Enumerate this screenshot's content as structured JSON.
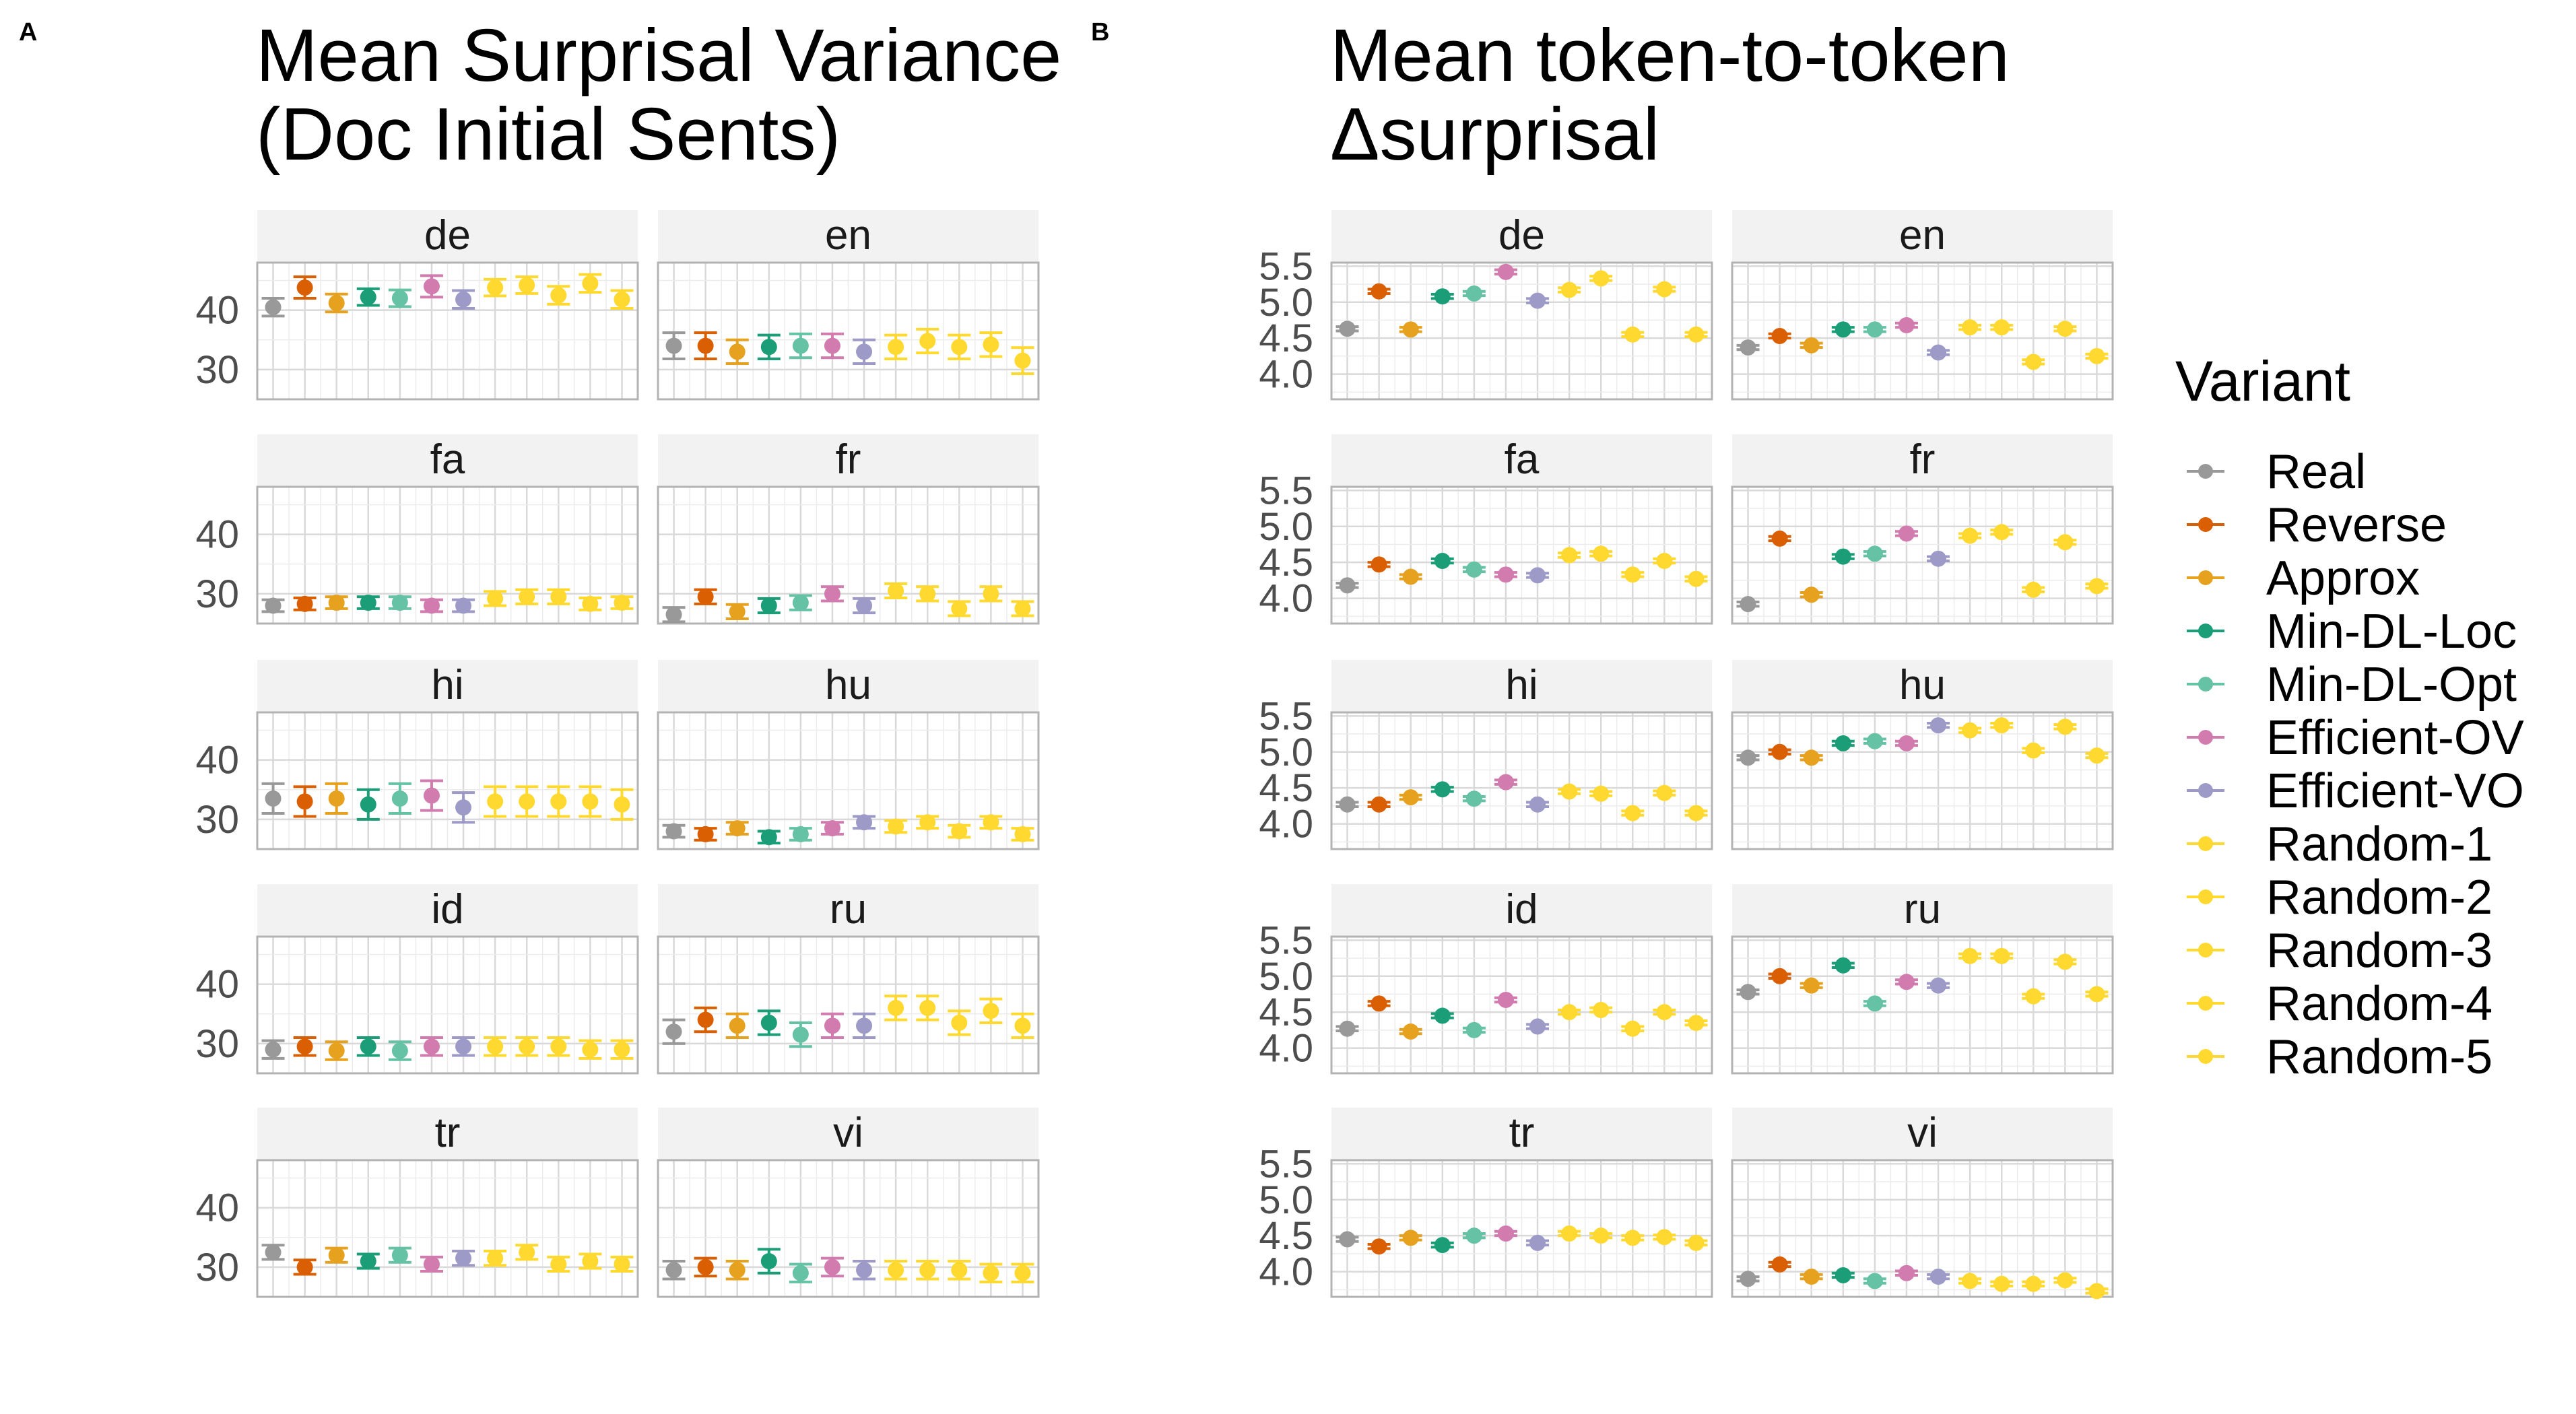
{
  "panels": [
    {
      "label": "A",
      "title_line1": "Mean Surprisal Variance",
      "title_line2": "(Doc Initial Sents)"
    },
    {
      "label": "B",
      "title_line1": "Mean token-to-token",
      "title_line2": "Δsurprisal"
    }
  ],
  "legend": {
    "title": "Variant"
  },
  "chart_data": [
    {
      "type": "scatter",
      "subtype": "point-with-errorbar, faceted",
      "title": "Mean Surprisal Variance (Doc Initial Sents)",
      "ylim": [
        25,
        48
      ],
      "y_ticks": [
        30,
        40
      ],
      "grid": true,
      "legend_position": "right",
      "series_order": [
        "Real",
        "Reverse",
        "Approx",
        "Min-DL-Loc",
        "Min-DL-Opt",
        "Efficient-OV",
        "Efficient-VO",
        "Random-1",
        "Random-2",
        "Random-3",
        "Random-4",
        "Random-5"
      ],
      "colors": [
        "#999999",
        "#D95F02",
        "#E6A11F",
        "#1B9E77",
        "#66C2A5",
        "#D17BAE",
        "#9E9AC8",
        "#FFD92F",
        "#FFD92F",
        "#FFD92F",
        "#FFD92F",
        "#FFD92F"
      ],
      "facets": [
        {
          "name": "de",
          "values": [
            40.5,
            43.8,
            41.2,
            42.2,
            42.0,
            44.0,
            41.8,
            43.8,
            44.2,
            42.5,
            44.5,
            41.8
          ],
          "err": [
            1.5,
            1.8,
            1.5,
            1.4,
            1.4,
            1.8,
            1.5,
            1.4,
            1.4,
            1.5,
            1.5,
            1.5
          ]
        },
        {
          "name": "en",
          "values": [
            34.0,
            34.0,
            33.0,
            33.8,
            34.0,
            34.0,
            33.0,
            33.8,
            34.8,
            33.8,
            34.2,
            31.5
          ],
          "err": [
            2.2,
            2.2,
            2.0,
            2.0,
            2.0,
            2.0,
            2.0,
            2.0,
            2.0,
            2.0,
            2.0,
            2.2
          ]
        },
        {
          "name": "fa",
          "values": [
            28.0,
            28.3,
            28.5,
            28.5,
            28.5,
            28.0,
            28.0,
            29.2,
            29.5,
            29.5,
            28.3,
            28.5
          ],
          "err": [
            1.0,
            1.0,
            1.0,
            1.0,
            1.0,
            1.0,
            1.0,
            1.2,
            1.2,
            1.2,
            1.0,
            1.0
          ]
        },
        {
          "name": "fr",
          "values": [
            26.5,
            29.5,
            27.0,
            28.0,
            28.5,
            30.0,
            28.0,
            30.5,
            30.0,
            27.5,
            30.0,
            27.5
          ],
          "err": [
            1.2,
            1.2,
            1.2,
            1.2,
            1.2,
            1.2,
            1.2,
            1.2,
            1.2,
            1.2,
            1.2,
            1.2
          ]
        },
        {
          "name": "hi",
          "values": [
            33.5,
            33.0,
            33.5,
            32.5,
            33.5,
            34.0,
            32.0,
            33.0,
            33.0,
            33.0,
            33.0,
            32.5
          ],
          "err": [
            2.5,
            2.5,
            2.5,
            2.5,
            2.5,
            2.5,
            2.5,
            2.5,
            2.5,
            2.5,
            2.5,
            2.5
          ]
        },
        {
          "name": "hu",
          "values": [
            28.0,
            27.5,
            28.5,
            27.0,
            27.5,
            28.5,
            29.5,
            28.8,
            29.5,
            28.0,
            29.5,
            27.5
          ],
          "err": [
            1.0,
            1.0,
            1.0,
            1.0,
            1.0,
            1.0,
            1.0,
            1.0,
            1.0,
            1.0,
            1.0,
            1.0
          ]
        },
        {
          "name": "id",
          "values": [
            29.0,
            29.5,
            28.8,
            29.5,
            28.8,
            29.5,
            29.5,
            29.5,
            29.5,
            29.5,
            29.0,
            29.0
          ],
          "err": [
            1.5,
            1.5,
            1.5,
            1.5,
            1.5,
            1.5,
            1.5,
            1.5,
            1.5,
            1.5,
            1.5,
            1.5
          ]
        },
        {
          "name": "ru",
          "values": [
            32.0,
            34.0,
            33.0,
            33.5,
            31.5,
            33.0,
            33.0,
            36.0,
            36.0,
            33.5,
            35.5,
            33.0
          ],
          "err": [
            2.0,
            2.0,
            2.0,
            2.0,
            2.0,
            2.0,
            2.0,
            2.0,
            2.0,
            2.0,
            2.0,
            2.0
          ]
        },
        {
          "name": "tr",
          "values": [
            32.5,
            30.0,
            32.0,
            31.0,
            32.0,
            30.5,
            31.5,
            31.5,
            32.5,
            30.5,
            31.0,
            30.5
          ],
          "err": [
            1.2,
            1.2,
            1.2,
            1.2,
            1.2,
            1.2,
            1.2,
            1.2,
            1.2,
            1.2,
            1.2,
            1.2
          ]
        },
        {
          "name": "vi",
          "values": [
            29.5,
            30.0,
            29.5,
            31.0,
            29.0,
            30.0,
            29.5,
            29.5,
            29.5,
            29.5,
            29.0,
            29.0
          ],
          "err": [
            1.5,
            1.5,
            1.5,
            2.0,
            1.5,
            1.5,
            1.5,
            1.5,
            1.5,
            1.5,
            1.5,
            1.5
          ]
        }
      ]
    },
    {
      "type": "scatter",
      "subtype": "point-with-errorbar, faceted",
      "title": "Mean token-to-token Δsurprisal",
      "ylim": [
        3.65,
        5.55
      ],
      "y_ticks": [
        4.0,
        4.5,
        5.0,
        5.5
      ],
      "grid": true,
      "legend_position": "right",
      "series_order": [
        "Real",
        "Reverse",
        "Approx",
        "Min-DL-Loc",
        "Min-DL-Opt",
        "Efficient-OV",
        "Efficient-VO",
        "Random-1",
        "Random-2",
        "Random-3",
        "Random-4",
        "Random-5"
      ],
      "colors": [
        "#999999",
        "#D95F02",
        "#E6A11F",
        "#1B9E77",
        "#66C2A5",
        "#D17BAE",
        "#9E9AC8",
        "#FFD92F",
        "#FFD92F",
        "#FFD92F",
        "#FFD92F",
        "#FFD92F"
      ],
      "facets": [
        {
          "name": "de",
          "values": [
            4.63,
            5.15,
            4.62,
            5.08,
            5.12,
            5.42,
            5.02,
            5.17,
            5.33,
            4.55,
            5.18,
            4.55
          ],
          "err": [
            0.03,
            0.03,
            0.03,
            0.03,
            0.03,
            0.03,
            0.03,
            0.03,
            0.03,
            0.03,
            0.03,
            0.03
          ]
        },
        {
          "name": "en",
          "values": [
            4.37,
            4.53,
            4.4,
            4.62,
            4.62,
            4.68,
            4.3,
            4.65,
            4.65,
            4.17,
            4.63,
            4.25
          ],
          "err": [
            0.03,
            0.03,
            0.03,
            0.03,
            0.03,
            0.03,
            0.03,
            0.03,
            0.03,
            0.03,
            0.03,
            0.03
          ]
        },
        {
          "name": "fa",
          "values": [
            4.18,
            4.47,
            4.3,
            4.52,
            4.4,
            4.33,
            4.32,
            4.6,
            4.62,
            4.33,
            4.52,
            4.27
          ],
          "err": [
            0.03,
            0.03,
            0.03,
            0.03,
            0.03,
            0.03,
            0.03,
            0.03,
            0.03,
            0.03,
            0.03,
            0.03
          ]
        },
        {
          "name": "fr",
          "values": [
            3.92,
            4.83,
            4.05,
            4.58,
            4.62,
            4.9,
            4.55,
            4.87,
            4.92,
            4.12,
            4.78,
            4.17
          ],
          "err": [
            0.03,
            0.03,
            0.03,
            0.03,
            0.03,
            0.03,
            0.03,
            0.03,
            0.03,
            0.03,
            0.03,
            0.03
          ]
        },
        {
          "name": "hi",
          "values": [
            4.27,
            4.27,
            4.37,
            4.48,
            4.35,
            4.58,
            4.27,
            4.45,
            4.42,
            4.15,
            4.43,
            4.15
          ],
          "err": [
            0.03,
            0.03,
            0.03,
            0.03,
            0.03,
            0.03,
            0.03,
            0.03,
            0.03,
            0.03,
            0.03,
            0.03
          ]
        },
        {
          "name": "hu",
          "values": [
            4.92,
            5.0,
            4.92,
            5.12,
            5.15,
            5.12,
            5.37,
            5.3,
            5.37,
            5.02,
            5.35,
            4.95
          ],
          "err": [
            0.03,
            0.03,
            0.03,
            0.03,
            0.03,
            0.03,
            0.03,
            0.03,
            0.03,
            0.03,
            0.03,
            0.03
          ]
        },
        {
          "name": "id",
          "values": [
            4.27,
            4.62,
            4.23,
            4.45,
            4.25,
            4.67,
            4.3,
            4.5,
            4.53,
            4.27,
            4.5,
            4.35
          ],
          "err": [
            0.03,
            0.03,
            0.03,
            0.03,
            0.03,
            0.03,
            0.03,
            0.03,
            0.03,
            0.03,
            0.03,
            0.03
          ]
        },
        {
          "name": "ru",
          "values": [
            4.78,
            5.0,
            4.87,
            5.15,
            4.62,
            4.92,
            4.87,
            5.28,
            5.28,
            4.72,
            5.2,
            4.75
          ],
          "err": [
            0.03,
            0.03,
            0.03,
            0.03,
            0.03,
            0.03,
            0.03,
            0.03,
            0.03,
            0.03,
            0.03,
            0.03
          ]
        },
        {
          "name": "tr",
          "values": [
            4.45,
            4.35,
            4.47,
            4.37,
            4.5,
            4.53,
            4.4,
            4.53,
            4.5,
            4.47,
            4.48,
            4.4
          ],
          "err": [
            0.03,
            0.03,
            0.03,
            0.03,
            0.03,
            0.03,
            0.03,
            0.03,
            0.03,
            0.03,
            0.03,
            0.03
          ]
        },
        {
          "name": "vi",
          "values": [
            3.9,
            4.1,
            3.93,
            3.95,
            3.87,
            3.98,
            3.93,
            3.87,
            3.83,
            3.83,
            3.88,
            3.73
          ],
          "err": [
            0.03,
            0.03,
            0.03,
            0.03,
            0.03,
            0.03,
            0.03,
            0.03,
            0.03,
            0.03,
            0.03,
            0.03
          ]
        }
      ]
    }
  ]
}
